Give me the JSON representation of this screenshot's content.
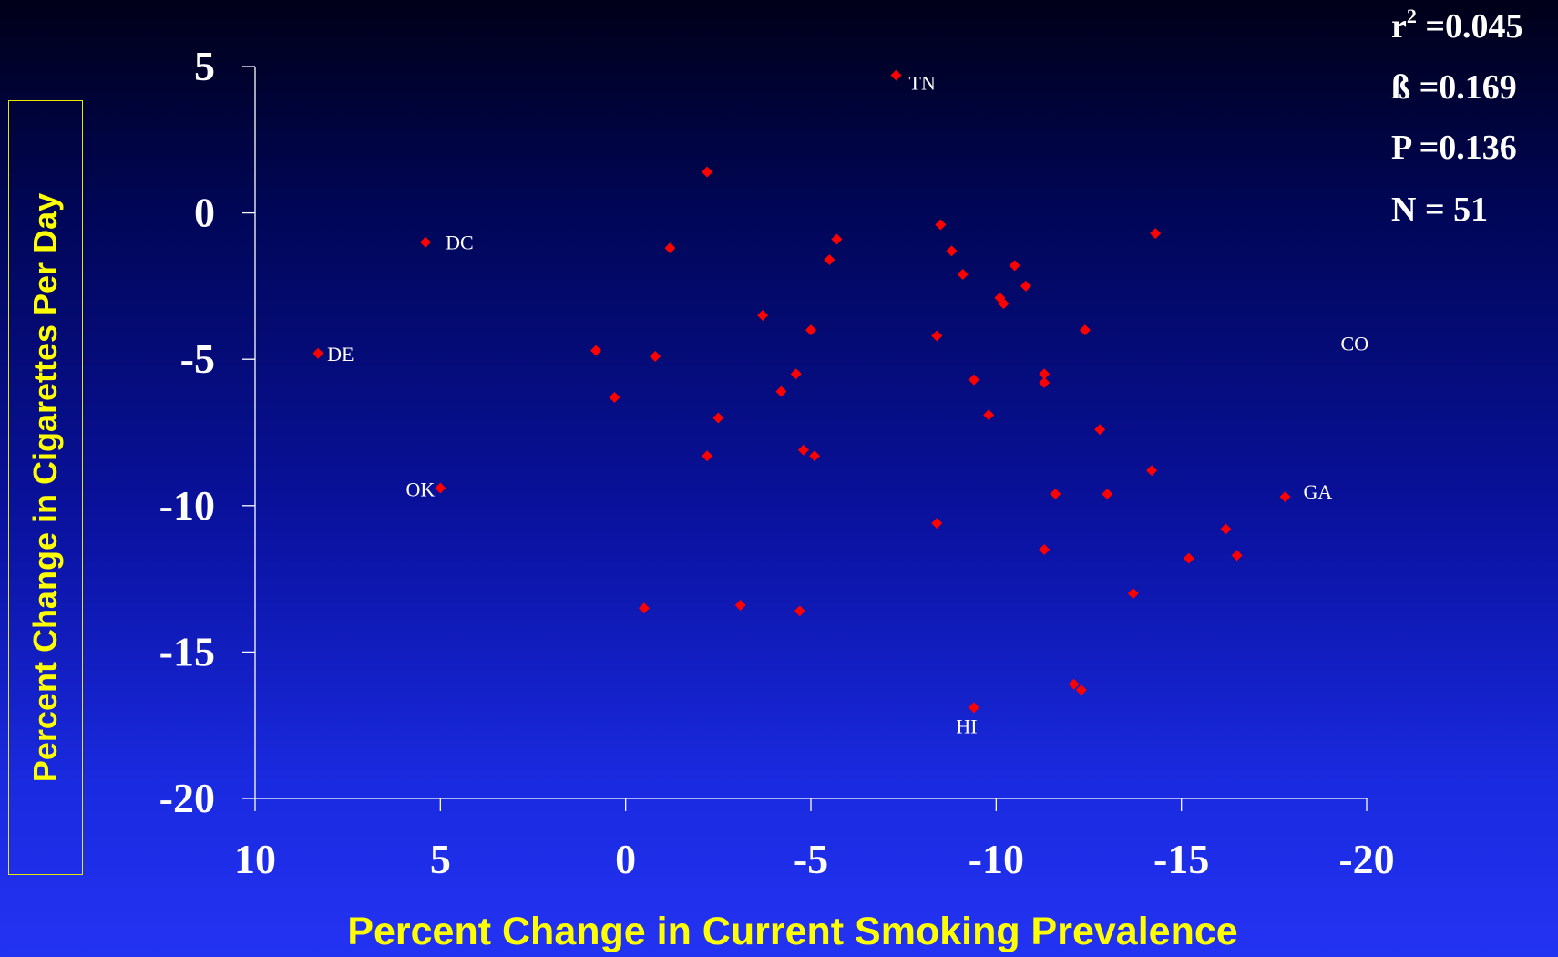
{
  "chart_data": {
    "type": "scatter",
    "xlabel": "Percent Change in Current Smoking Prevalence",
    "ylabel": "Percent Change in Cigarettes Per Day",
    "xlim": [
      10,
      -20
    ],
    "ylim": [
      -20,
      5
    ],
    "x_reversed": true,
    "xticks": [
      "10",
      "5",
      "0",
      "-5",
      "-10",
      "-15",
      "-20"
    ],
    "yticks": [
      "5",
      "0",
      "-5",
      "-10",
      "-15",
      "-20"
    ],
    "grid": false,
    "colors": {
      "point": "#ff0000",
      "axis": "#ffffff",
      "tick_label": "#ffffff",
      "title": "#ffff00"
    },
    "points": [
      {
        "x": -7.3,
        "y": 4.7,
        "label": "TN"
      },
      {
        "x": 5.4,
        "y": -1.0,
        "label": "DC"
      },
      {
        "x": 8.3,
        "y": -4.8,
        "label": "DE"
      },
      {
        "x": 5.0,
        "y": -9.4,
        "label": "OK"
      },
      {
        "x": -17.8,
        "y": -9.7,
        "label": "GA"
      },
      {
        "x": -9.4,
        "y": -16.9,
        "label": "HI"
      },
      {
        "x": -2.2,
        "y": 1.4
      },
      {
        "x": -1.2,
        "y": -1.2
      },
      {
        "x": -5.7,
        "y": -0.9
      },
      {
        "x": -5.5,
        "y": -1.6
      },
      {
        "x": -8.5,
        "y": -0.4
      },
      {
        "x": -8.8,
        "y": -1.3
      },
      {
        "x": -9.1,
        "y": -2.1
      },
      {
        "x": -10.5,
        "y": -1.8
      },
      {
        "x": -10.8,
        "y": -2.5
      },
      {
        "x": -10.1,
        "y": -2.9
      },
      {
        "x": -10.2,
        "y": -3.1
      },
      {
        "x": -14.3,
        "y": -0.7
      },
      {
        "x": -12.4,
        "y": -4.0
      },
      {
        "x": -3.7,
        "y": -3.5
      },
      {
        "x": -5.0,
        "y": -4.0
      },
      {
        "x": 0.8,
        "y": -4.7
      },
      {
        "x": -0.8,
        "y": -4.9
      },
      {
        "x": -8.4,
        "y": -4.2
      },
      {
        "x": -9.4,
        "y": -5.7
      },
      {
        "x": -11.3,
        "y": -5.5
      },
      {
        "x": -11.3,
        "y": -5.8
      },
      {
        "x": 0.3,
        "y": -6.3
      },
      {
        "x": -2.5,
        "y": -7.0
      },
      {
        "x": -4.6,
        "y": -5.5
      },
      {
        "x": -4.2,
        "y": -6.1
      },
      {
        "x": -9.8,
        "y": -6.9
      },
      {
        "x": -12.8,
        "y": -7.4
      },
      {
        "x": -2.2,
        "y": -8.3
      },
      {
        "x": -4.8,
        "y": -8.1
      },
      {
        "x": -5.1,
        "y": -8.3
      },
      {
        "x": -14.2,
        "y": -8.8
      },
      {
        "x": -11.6,
        "y": -9.6
      },
      {
        "x": -13.0,
        "y": -9.6
      },
      {
        "x": -8.4,
        "y": -10.6
      },
      {
        "x": -16.2,
        "y": -10.8
      },
      {
        "x": -11.3,
        "y": -11.5
      },
      {
        "x": -15.2,
        "y": -11.8
      },
      {
        "x": -16.5,
        "y": -11.7
      },
      {
        "x": -13.7,
        "y": -13.0
      },
      {
        "x": -0.5,
        "y": -13.5
      },
      {
        "x": -3.1,
        "y": -13.4
      },
      {
        "x": -4.7,
        "y": -13.6
      },
      {
        "x": -12.1,
        "y": -16.1
      },
      {
        "x": -12.3,
        "y": -16.3
      }
    ],
    "annotations": [
      {
        "text": "CO",
        "x": -19.3,
        "y": -4.7
      }
    ]
  },
  "stats": {
    "r2_prefix": "r",
    "r2_sup": "2",
    "r2_value": " =0.045",
    "beta": "ß =0.169",
    "p": "P =0.136",
    "n": "N = 51"
  }
}
